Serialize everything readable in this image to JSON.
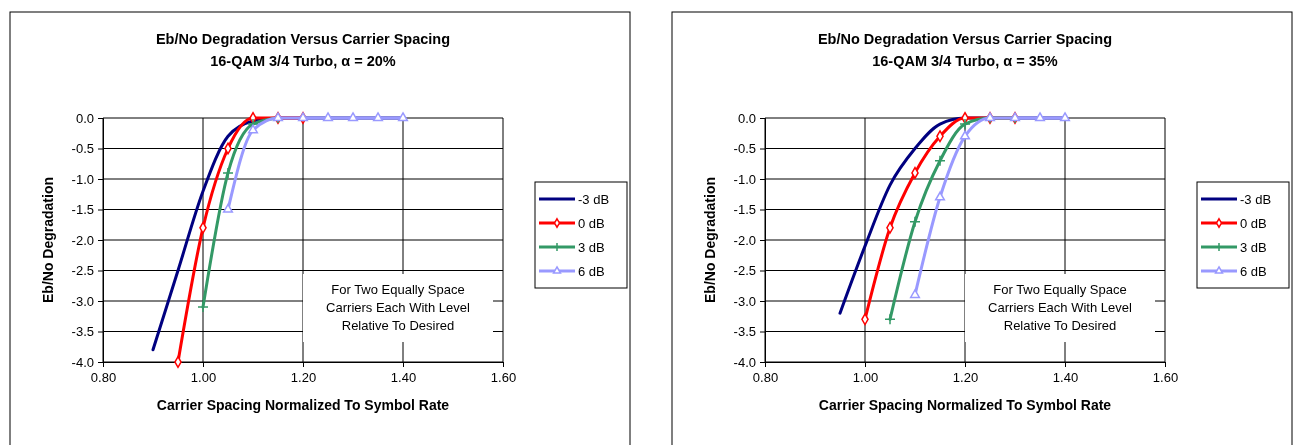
{
  "chart_data": [
    {
      "type": "line",
      "title": "Eb/No Degradation Versus  Carrier Spacing",
      "subtitle": "16-QAM 3/4 Turbo, α = 20%",
      "xlabel": "Carrier Spacing Normalized To Symbol Rate",
      "ylabel": "Eb/No Degradation",
      "xlim": [
        0.8,
        1.6
      ],
      "xticks": [
        {
          "value": 0.8,
          "label": "0.80"
        },
        {
          "value": 1.0,
          "label": "1.00"
        },
        {
          "value": 1.2,
          "label": "1.20"
        },
        {
          "value": 1.4,
          "label": "1.40"
        },
        {
          "value": 1.6,
          "label": "1.60"
        }
      ],
      "ylim": [
        -4,
        0
      ],
      "yticks": [
        {
          "value": -4,
          "label": "-4.0"
        },
        {
          "value": -3.5,
          "label": "-3.5"
        },
        {
          "value": -3,
          "label": "-3.0"
        },
        {
          "value": -2.5,
          "label": "-2.5"
        },
        {
          "value": -2,
          "label": "-2.0"
        },
        {
          "value": -1.5,
          "label": "-1.5"
        },
        {
          "value": -1,
          "label": "-1.0"
        },
        {
          "value": -0.5,
          "label": "-0.5"
        },
        {
          "value": 0,
          "label": "0.0"
        }
      ],
      "grid": true,
      "legend": "right",
      "line_style": "solid",
      "annotations": [
        "For Two Equally Space\nCarriers Each With Level\nRelative To Desired"
      ],
      "series": [
        {
          "name": "-3 dB",
          "color": "#000080",
          "marker": "none",
          "x": [
            0.9,
            0.95,
            1.0,
            1.05,
            1.1,
            1.15,
            1.2,
            1.25,
            1.3,
            1.35,
            1.4
          ],
          "values": [
            -3.8,
            -2.5,
            -1.2,
            -0.3,
            -0.05,
            0,
            0,
            0,
            0,
            0,
            0
          ]
        },
        {
          "name": "0 dB",
          "color": "#ff0000",
          "marker": "diamond",
          "x": [
            0.95,
            1.0,
            1.05,
            1.1,
            1.15,
            1.2
          ],
          "values": [
            -4.0,
            -1.8,
            -0.5,
            0,
            0,
            0
          ]
        },
        {
          "name": "3 dB",
          "color": "#339966",
          "marker": "cross",
          "x": [
            1.0,
            1.05,
            1.1,
            1.15
          ],
          "values": [
            -3.1,
            -0.9,
            -0.1,
            0
          ]
        },
        {
          "name": "6 dB",
          "color": "#9999ff",
          "marker": "triangle",
          "x": [
            1.05,
            1.1,
            1.15,
            1.2,
            1.25,
            1.3,
            1.35,
            1.4
          ],
          "values": [
            -1.5,
            -0.2,
            0,
            0,
            0,
            0,
            0,
            0
          ]
        }
      ]
    },
    {
      "type": "line",
      "title": "Eb/No Degradation Versus  Carrier Spacing",
      "subtitle": "16-QAM 3/4 Turbo, α = 35%",
      "xlabel": "Carrier Spacing Normalized To Symbol Rate",
      "ylabel": "Eb/No Degradation",
      "xlim": [
        0.8,
        1.6
      ],
      "xticks": [
        {
          "value": 0.8,
          "label": "0.80"
        },
        {
          "value": 1.0,
          "label": "1.00"
        },
        {
          "value": 1.2,
          "label": "1.20"
        },
        {
          "value": 1.4,
          "label": "1.40"
        },
        {
          "value": 1.6,
          "label": "1.60"
        }
      ],
      "ylim": [
        -4,
        0
      ],
      "yticks": [
        {
          "value": -4,
          "label": "-4.0"
        },
        {
          "value": -3.5,
          "label": "-3.5"
        },
        {
          "value": -3,
          "label": "-3.0"
        },
        {
          "value": -2.5,
          "label": "-2.5"
        },
        {
          "value": -2,
          "label": "-2.0"
        },
        {
          "value": -1.5,
          "label": "-1.5"
        },
        {
          "value": -1,
          "label": "-1.0"
        },
        {
          "value": -0.5,
          "label": "-0.5"
        },
        {
          "value": 0,
          "label": "0.0"
        }
      ],
      "grid": true,
      "legend": "right",
      "line_style": "solid",
      "annotations": [
        "For Two Equally Space\nCarriers Each With Level\nRelative To Desired"
      ],
      "series": [
        {
          "name": "-3 dB",
          "color": "#000080",
          "marker": "none",
          "x": [
            0.95,
            1.0,
            1.05,
            1.1,
            1.15,
            1.2,
            1.25,
            1.3,
            1.35,
            1.4
          ],
          "values": [
            -3.2,
            -2.1,
            -1.1,
            -0.5,
            -0.1,
            0,
            0,
            0,
            0,
            0
          ]
        },
        {
          "name": "0 dB",
          "color": "#ff0000",
          "marker": "diamond",
          "x": [
            1.0,
            1.05,
            1.1,
            1.15,
            1.2,
            1.25,
            1.3
          ],
          "values": [
            -3.3,
            -1.8,
            -0.9,
            -0.3,
            0,
            0,
            0
          ]
        },
        {
          "name": "3 dB",
          "color": "#339966",
          "marker": "cross",
          "x": [
            1.05,
            1.1,
            1.15,
            1.2,
            1.25,
            1.3
          ],
          "values": [
            -3.3,
            -1.7,
            -0.7,
            -0.1,
            0,
            0
          ]
        },
        {
          "name": "6 dB",
          "color": "#9999ff",
          "marker": "triangle",
          "x": [
            1.1,
            1.15,
            1.2,
            1.25,
            1.3,
            1.35,
            1.4
          ],
          "values": [
            -2.9,
            -1.3,
            -0.3,
            0,
            0,
            0,
            0
          ]
        }
      ]
    }
  ]
}
